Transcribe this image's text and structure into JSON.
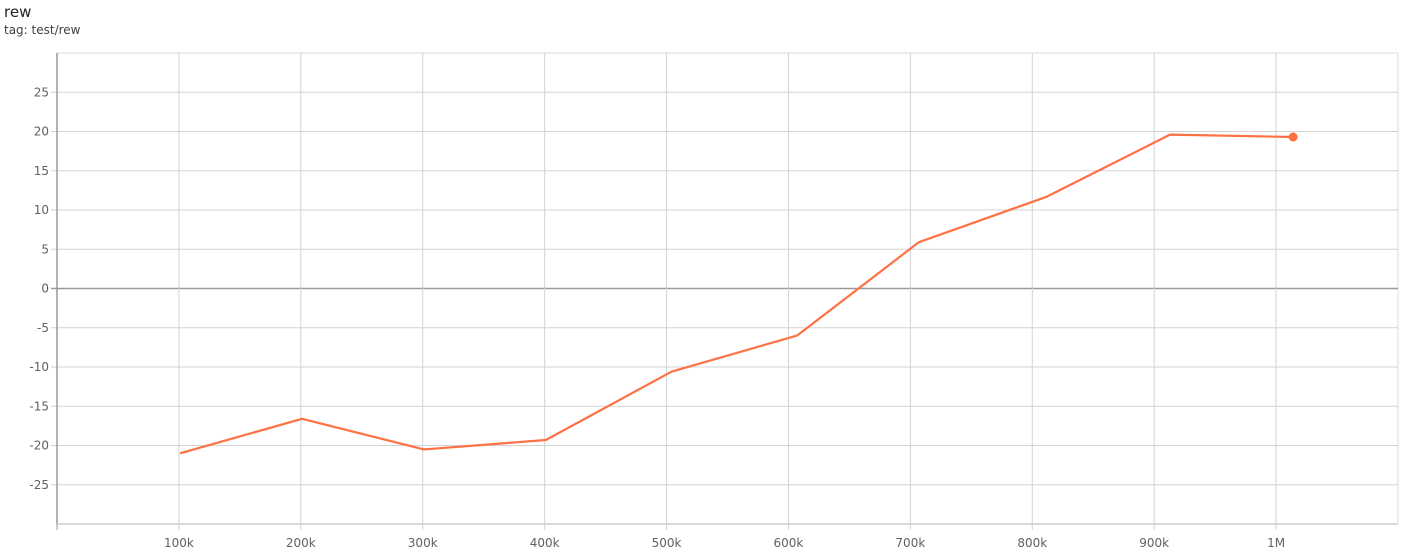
{
  "header": {
    "title": "rew",
    "tag": "tag: test/rew"
  },
  "chart_data": {
    "type": "line",
    "title": "rew",
    "subtitle": "tag: test/rew",
    "xlabel": "",
    "ylabel": "",
    "xlim": [
      0,
      1100000
    ],
    "ylim": [
      -30,
      30
    ],
    "grid": true,
    "x_ticks": [
      {
        "v": 100000,
        "label": "100k"
      },
      {
        "v": 200000,
        "label": "200k"
      },
      {
        "v": 300000,
        "label": "300k"
      },
      {
        "v": 400000,
        "label": "400k"
      },
      {
        "v": 500000,
        "label": "500k"
      },
      {
        "v": 600000,
        "label": "600k"
      },
      {
        "v": 700000,
        "label": "700k"
      },
      {
        "v": 800000,
        "label": "800k"
      },
      {
        "v": 900000,
        "label": "900k"
      },
      {
        "v": 1000000,
        "label": "1M"
      }
    ],
    "y_ticks": [
      {
        "v": 25,
        "label": "25"
      },
      {
        "v": 20,
        "label": "20"
      },
      {
        "v": 15,
        "label": "15"
      },
      {
        "v": 10,
        "label": "10"
      },
      {
        "v": 5,
        "label": "5"
      },
      {
        "v": 0,
        "label": "0"
      },
      {
        "v": -5,
        "label": "-5"
      },
      {
        "v": -10,
        "label": "-10"
      },
      {
        "v": -15,
        "label": "-15"
      },
      {
        "v": -20,
        "label": "-20"
      },
      {
        "v": -25,
        "label": "-25"
      }
    ],
    "series": [
      {
        "color": "#ff7043",
        "x": [
          101000,
          201000,
          301000,
          401000,
          504000,
          607000,
          707000,
          812000,
          913000,
          1014000
        ],
        "y": [
          -21.0,
          -16.6,
          -20.5,
          -19.3,
          -10.6,
          -6.0,
          5.9,
          11.7,
          19.6,
          19.3
        ]
      }
    ]
  }
}
